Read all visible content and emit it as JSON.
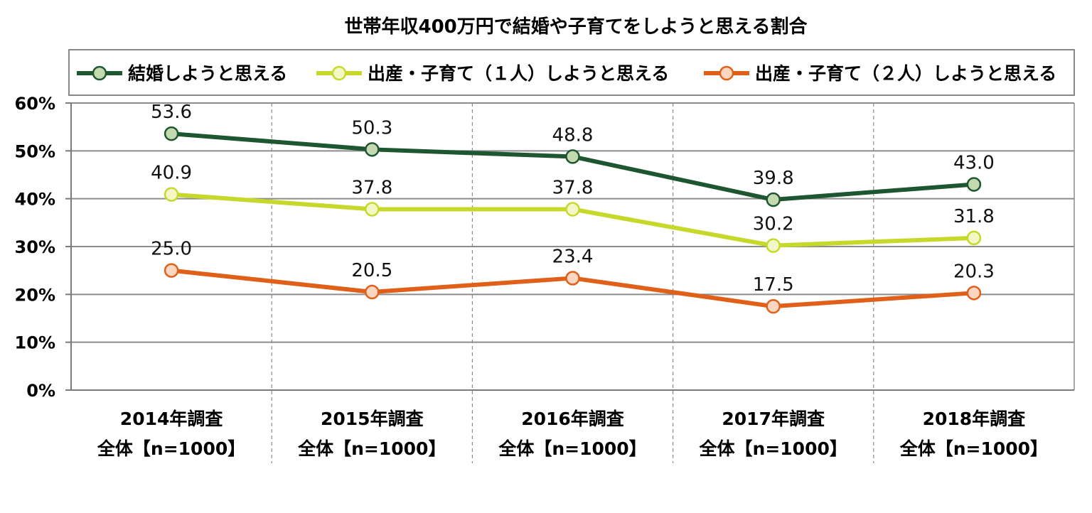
{
  "chart_data": {
    "type": "line",
    "title": "世帯年収400万円で結婚や子育てをしようと思える割合",
    "xlabel": "",
    "ylabel": "",
    "ylim": [
      0,
      60
    ],
    "yticks": [
      0,
      10,
      20,
      30,
      40,
      50,
      60
    ],
    "ytick_labels": [
      "0%",
      "10%",
      "20%",
      "30%",
      "40%",
      "50%",
      "60%"
    ],
    "grid": true,
    "legend_position": "top",
    "categories": [
      {
        "line1": "2014年調査",
        "line2": "全体【n=1000】"
      },
      {
        "line1": "2015年調査",
        "line2": "全体【n=1000】"
      },
      {
        "line1": "2016年調査",
        "line2": "全体【n=1000】"
      },
      {
        "line1": "2017年調査",
        "line2": "全体【n=1000】"
      },
      {
        "line1": "2018年調査",
        "line2": "全体【n=1000】"
      }
    ],
    "series": [
      {
        "name": "結婚しようと思える",
        "line_color": "#1e5631",
        "marker_fill": "#c5d9b0",
        "marker_stroke": "#1e5631",
        "values": [
          53.6,
          50.3,
          48.8,
          39.8,
          43.0
        ],
        "labels": [
          "53.6",
          "50.3",
          "48.8",
          "39.8",
          "43.0"
        ]
      },
      {
        "name": "出産・子育て（１人）しようと思える",
        "line_color": "#c6d92a",
        "marker_fill": "#f3f7c6",
        "marker_stroke": "#c6d92a",
        "values": [
          40.9,
          37.8,
          37.8,
          30.2,
          31.8
        ],
        "labels": [
          "40.9",
          "37.8",
          "37.8",
          "30.2",
          "31.8"
        ]
      },
      {
        "name": "出産・子育て（２人）しようと思える",
        "line_color": "#e0601a",
        "marker_fill": "#fbd7c2",
        "marker_stroke": "#e0601a",
        "values": [
          25.0,
          20.5,
          23.4,
          17.5,
          20.3
        ],
        "labels": [
          "25.0",
          "20.5",
          "23.4",
          "17.5",
          "20.3"
        ]
      }
    ]
  }
}
